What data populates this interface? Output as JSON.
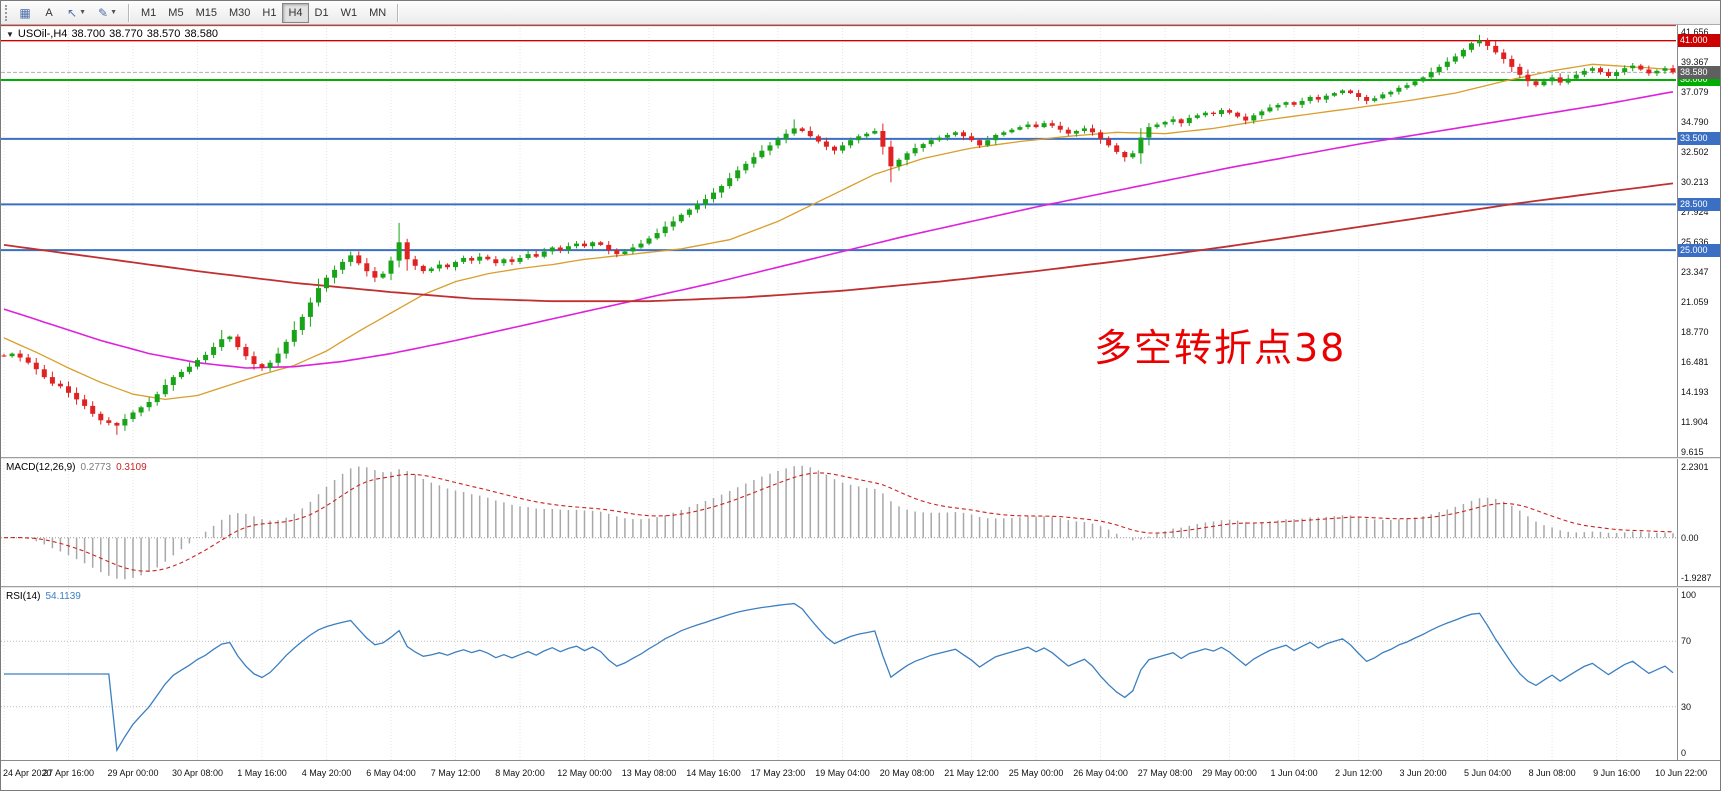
{
  "toolbar": {
    "text_tool": "A",
    "timeframes": [
      "M1",
      "M5",
      "M15",
      "M30",
      "H1",
      "H4",
      "D1",
      "W1",
      "MN"
    ],
    "active_timeframe": "H4"
  },
  "symbol_header": {
    "expander": "▼",
    "symbol": "USOil-,H4",
    "open": "38.700",
    "high": "38.770",
    "low": "38.570",
    "close": "38.580"
  },
  "annotation": {
    "text": "多空转折点38",
    "color": "#e90000"
  },
  "price_axis": {
    "ticks": [
      "41.656",
      "39.367",
      "37.079",
      "34.790",
      "32.502",
      "30.213",
      "27.924",
      "25.636",
      "23.347",
      "21.059",
      "18.770",
      "16.481",
      "14.193",
      "11.904",
      "9.615"
    ]
  },
  "macd_panel": {
    "label": "MACD(12,26,9)",
    "main_value": "0.2773",
    "signal_value": "0.3109",
    "axis": {
      "top": "2.2301",
      "zero": "0.00",
      "bottom": "-1.9287"
    }
  },
  "rsi_panel": {
    "label": "RSI(14)",
    "value": "54.1139",
    "axis": [
      "100",
      "70",
      "30",
      "0"
    ],
    "levels": [
      70,
      30
    ]
  },
  "time_axis": {
    "labels": [
      "24 Apr 2020",
      "27 Apr 16:00",
      "29 Apr 00:00",
      "30 Apr 08:00",
      "1 May 16:00",
      "4 May 20:00",
      "6 May 04:00",
      "7 May 12:00",
      "8 May 20:00",
      "12 May 00:00",
      "13 May 08:00",
      "14 May 16:00",
      "17 May 23:00",
      "19 May 04:00",
      "20 May 08:00",
      "21 May 12:00",
      "25 May 00:00",
      "26 May 04:00",
      "27 May 08:00",
      "29 May 00:00",
      "1 Jun 04:00",
      "2 Jun 12:00",
      "3 Jun 20:00",
      "5 Jun 04:00",
      "8 Jun 08:00",
      "9 Jun 16:00",
      "10 Jun 22:00"
    ]
  },
  "chart_data": {
    "type": "candlestick",
    "title": "USOil-,H4",
    "ylim": [
      9.2,
      42.2
    ],
    "bars_per_gridline": 8,
    "up_color": "#18a318",
    "down_color": "#e02222",
    "first_open": 16.95,
    "closes": [
      16.9,
      17.1,
      16.8,
      16.4,
      15.9,
      15.3,
      14.8,
      14.6,
      14.1,
      13.6,
      13.1,
      12.5,
      12.0,
      11.8,
      11.6,
      12.1,
      12.6,
      13.0,
      13.4,
      14.0,
      14.7,
      15.3,
      15.7,
      16.1,
      16.6,
      17.0,
      17.6,
      18.2,
      18.4,
      17.6,
      16.9,
      16.3,
      16.0,
      16.4,
      17.1,
      18.0,
      18.9,
      19.9,
      21.0,
      22.1,
      22.9,
      23.5,
      24.1,
      24.6,
      24.0,
      23.4,
      22.9,
      23.2,
      24.2,
      25.6,
      24.3,
      23.8,
      23.4,
      23.6,
      23.9,
      23.7,
      24.1,
      24.4,
      24.2,
      24.5,
      24.3,
      24.0,
      24.3,
      24.1,
      24.4,
      24.7,
      24.5,
      24.9,
      25.2,
      25.0,
      25.3,
      25.5,
      25.3,
      25.6,
      25.4,
      25.0,
      24.7,
      24.9,
      25.2,
      25.5,
      25.9,
      26.3,
      26.8,
      27.2,
      27.7,
      28.1,
      28.5,
      28.9,
      29.4,
      29.9,
      30.5,
      31.1,
      31.6,
      32.1,
      32.6,
      33.0,
      33.5,
      33.9,
      34.3,
      34.1,
      33.7,
      33.3,
      32.9,
      32.6,
      33.0,
      33.4,
      33.7,
      33.9,
      34.1,
      32.9,
      31.4,
      31.9,
      32.4,
      32.8,
      33.1,
      33.4,
      33.6,
      33.8,
      34.0,
      33.7,
      33.4,
      33.0,
      33.4,
      33.8,
      34.0,
      34.2,
      34.4,
      34.6,
      34.4,
      34.7,
      34.5,
      34.2,
      33.9,
      34.1,
      34.3,
      34.0,
      33.5,
      33.0,
      32.5,
      32.1,
      32.4,
      33.6,
      34.4,
      34.6,
      34.8,
      35.0,
      34.7,
      35.1,
      35.3,
      35.5,
      35.4,
      35.7,
      35.5,
      35.2,
      34.9,
      35.3,
      35.6,
      35.9,
      36.1,
      36.3,
      36.1,
      36.4,
      36.7,
      36.5,
      36.8,
      37.0,
      37.2,
      37.0,
      36.7,
      36.4,
      36.6,
      36.9,
      37.1,
      37.4,
      37.6,
      37.9,
      38.2,
      38.6,
      39.0,
      39.4,
      39.8,
      40.3,
      40.8,
      41.0,
      40.6,
      40.1,
      39.6,
      39.0,
      38.4,
      37.9,
      37.6,
      37.9,
      38.2,
      37.8,
      38.1,
      38.4,
      38.7,
      38.9,
      38.6,
      38.3,
      38.6,
      38.9,
      39.1,
      38.8,
      38.5,
      38.7,
      38.9,
      38.58
    ],
    "wick_boosts": {
      "14": [
        0,
        0.5
      ],
      "27": [
        0.4,
        0
      ],
      "49": [
        0.8,
        0
      ],
      "98": [
        0.45,
        0
      ],
      "110": [
        0,
        0.45
      ],
      "183": [
        0.25,
        0
      ]
    },
    "hlines": [
      {
        "price": 42.15,
        "color": "#bb2222",
        "width": 1,
        "label": ""
      },
      {
        "price": 41.0,
        "color": "#cc0000",
        "width": 1.4,
        "label": "41.000"
      },
      {
        "price": 38.0,
        "color": "#00ad00",
        "width": 2,
        "label": "38.000"
      },
      {
        "price": 33.5,
        "color": "#3a6fc4",
        "width": 2,
        "label": "33.500"
      },
      {
        "price": 28.5,
        "color": "#3a6fc4",
        "width": 2,
        "label": "28.500"
      },
      {
        "price": 25.0,
        "color": "#3a6fc4",
        "width": 2,
        "label": "25.000"
      }
    ],
    "bid": {
      "price": 38.58,
      "label": "38.580",
      "badge_color": "#5f5f5f"
    },
    "moving_averages": [
      {
        "name": "ma-fast-orange",
        "color": "#d99e2b",
        "width": 1.3,
        "points": [
          [
            0,
            18.3
          ],
          [
            4,
            17.2
          ],
          [
            8,
            16.0
          ],
          [
            12,
            14.9
          ],
          [
            16,
            14.0
          ],
          [
            20,
            13.6
          ],
          [
            24,
            13.9
          ],
          [
            28,
            14.7
          ],
          [
            32,
            15.5
          ],
          [
            36,
            16.2
          ],
          [
            40,
            17.3
          ],
          [
            44,
            18.8
          ],
          [
            48,
            20.2
          ],
          [
            52,
            21.6
          ],
          [
            56,
            22.6
          ],
          [
            60,
            23.2
          ],
          [
            64,
            23.6
          ],
          [
            68,
            23.9
          ],
          [
            72,
            24.3
          ],
          [
            78,
            24.7
          ],
          [
            84,
            25.1
          ],
          [
            90,
            25.8
          ],
          [
            96,
            27.2
          ],
          [
            102,
            29.0
          ],
          [
            108,
            30.8
          ],
          [
            114,
            32.0
          ],
          [
            120,
            32.8
          ],
          [
            126,
            33.3
          ],
          [
            132,
            33.7
          ],
          [
            138,
            34.0
          ],
          [
            144,
            33.9
          ],
          [
            150,
            34.3
          ],
          [
            156,
            34.9
          ],
          [
            162,
            35.4
          ],
          [
            168,
            35.9
          ],
          [
            174,
            36.4
          ],
          [
            180,
            37.0
          ],
          [
            186,
            37.9
          ],
          [
            192,
            38.7
          ],
          [
            197,
            39.2
          ],
          [
            202,
            39.0
          ],
          [
            207,
            38.8
          ]
        ]
      },
      {
        "name": "ma-mid-magenta",
        "color": "#dd22dd",
        "width": 1.6,
        "points": [
          [
            0,
            20.5
          ],
          [
            6,
            19.3
          ],
          [
            12,
            18.1
          ],
          [
            18,
            17.1
          ],
          [
            24,
            16.4
          ],
          [
            30,
            16.0
          ],
          [
            36,
            16.1
          ],
          [
            42,
            16.5
          ],
          [
            48,
            17.1
          ],
          [
            56,
            18.1
          ],
          [
            64,
            19.2
          ],
          [
            72,
            20.3
          ],
          [
            80,
            21.4
          ],
          [
            88,
            22.5
          ],
          [
            96,
            23.7
          ],
          [
            104,
            24.9
          ],
          [
            112,
            26.1
          ],
          [
            120,
            27.2
          ],
          [
            128,
            28.3
          ],
          [
            136,
            29.3
          ],
          [
            144,
            30.3
          ],
          [
            152,
            31.3
          ],
          [
            160,
            32.2
          ],
          [
            168,
            33.1
          ],
          [
            176,
            33.9
          ],
          [
            184,
            34.7
          ],
          [
            192,
            35.5
          ],
          [
            199,
            36.2
          ],
          [
            207,
            37.1
          ]
        ]
      },
      {
        "name": "ma-slow-red",
        "color": "#c03030",
        "width": 1.8,
        "points": [
          [
            0,
            25.4
          ],
          [
            12,
            24.4
          ],
          [
            24,
            23.4
          ],
          [
            36,
            22.5
          ],
          [
            48,
            21.8
          ],
          [
            58,
            21.3
          ],
          [
            68,
            21.1
          ],
          [
            80,
            21.1
          ],
          [
            92,
            21.4
          ],
          [
            104,
            21.9
          ],
          [
            116,
            22.6
          ],
          [
            128,
            23.4
          ],
          [
            140,
            24.3
          ],
          [
            152,
            25.3
          ],
          [
            164,
            26.4
          ],
          [
            176,
            27.5
          ],
          [
            188,
            28.6
          ],
          [
            198,
            29.4
          ],
          [
            207,
            30.1
          ]
        ]
      }
    ],
    "macd": {
      "fast": 12,
      "slow": 26,
      "signal": 9,
      "hist_color": "#a8a8a8",
      "signal_color": "#cc2222",
      "range": [
        -1.9287,
        2.2301
      ]
    },
    "rsi": {
      "period": 14,
      "color": "#3c7fc0",
      "range": [
        0,
        100
      ]
    }
  }
}
